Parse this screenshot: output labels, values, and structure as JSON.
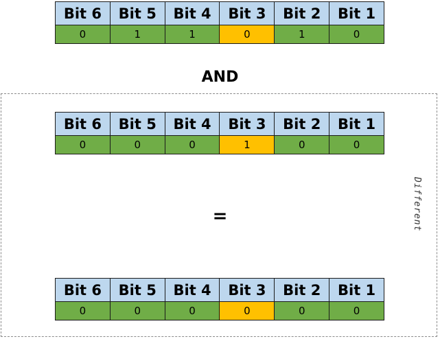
{
  "headers": [
    "Bit 6",
    "Bit 5",
    "Bit 4",
    "Bit 3",
    "Bit 2",
    "Bit 1"
  ],
  "highlight_index": 3,
  "colors": {
    "header": "#bdd7ee",
    "value": "#70ad47",
    "highlight": "#ffc000"
  },
  "operand_a": {
    "values": [
      "0",
      "1",
      "1",
      "0",
      "1",
      "0"
    ]
  },
  "operator_and": "AND",
  "operand_b": {
    "values": [
      "0",
      "0",
      "0",
      "1",
      "0",
      "0"
    ]
  },
  "operator_equals": "=",
  "result": {
    "values": [
      "0",
      "0",
      "0",
      "0",
      "0",
      "0"
    ]
  },
  "annotation": "Different"
}
